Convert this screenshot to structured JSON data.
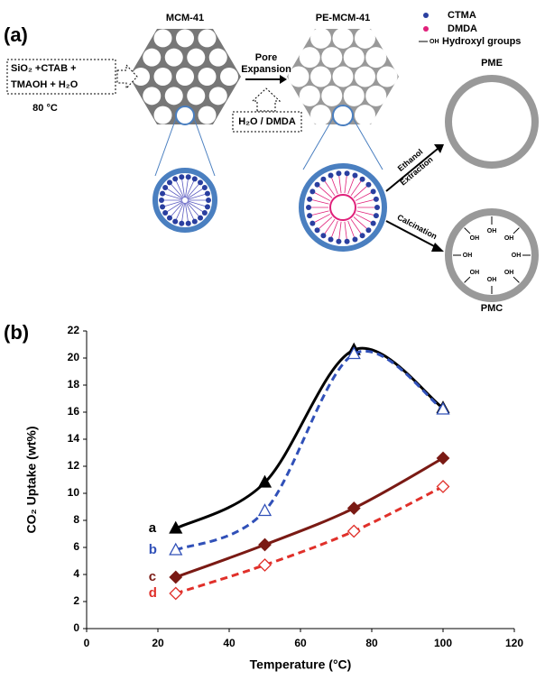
{
  "panel_a": {
    "label": "(a)",
    "mcm": "MCM-41",
    "pe_mcm": "PE-MCM-41",
    "legend": [
      "CTMA",
      "DMDA",
      "Hydroxyl groups"
    ],
    "legend_oh": "OH",
    "recipe_1": "SiO₂ +CTAB +",
    "recipe_2": "TMAOH + H₂O",
    "temperature": "80 °C",
    "pore_1": "Pore",
    "pore_2": "Expansion",
    "reagent": "H₂O / DMDA",
    "pme": "PME",
    "extraction_1": "Ethanol",
    "extraction_2": "Extraction",
    "calcination": "Calcination",
    "pmc": "PMC",
    "hydroxyl_labels": [
      "OH",
      "OH",
      "OH",
      "OH",
      "OH",
      "OH",
      "OH",
      "OH"
    ]
  },
  "chart_data": {
    "type": "line",
    "label": "(b)",
    "x_label": "Temperature (°C)",
    "y_label": "CO₂ Uptake (wt%)",
    "x": [
      25,
      50,
      75,
      100
    ],
    "xlim": [
      0,
      120
    ],
    "xticks": [
      0,
      20,
      40,
      60,
      80,
      100,
      120
    ],
    "ylim": [
      0,
      22
    ],
    "yticks": [
      0,
      2,
      4,
      6,
      8,
      10,
      12,
      14,
      16,
      18,
      20,
      22
    ],
    "series": [
      {
        "name": "a",
        "color": "#000000",
        "marker": "triangle",
        "filled": true,
        "dashed": false,
        "values": [
          7.4,
          10.8,
          20.6,
          16.3
        ]
      },
      {
        "name": "b",
        "color": "#3050b8",
        "marker": "triangle",
        "filled": false,
        "dashed": true,
        "values": [
          5.8,
          8.7,
          20.3,
          16.2
        ]
      },
      {
        "name": "c",
        "color": "#7a1a14",
        "marker": "diamond",
        "filled": true,
        "dashed": false,
        "values": [
          3.8,
          6.2,
          8.9,
          12.6
        ]
      },
      {
        "name": "d",
        "color": "#e0302a",
        "marker": "diamond",
        "filled": false,
        "dashed": true,
        "values": [
          2.6,
          4.7,
          7.2,
          10.5
        ]
      }
    ]
  }
}
